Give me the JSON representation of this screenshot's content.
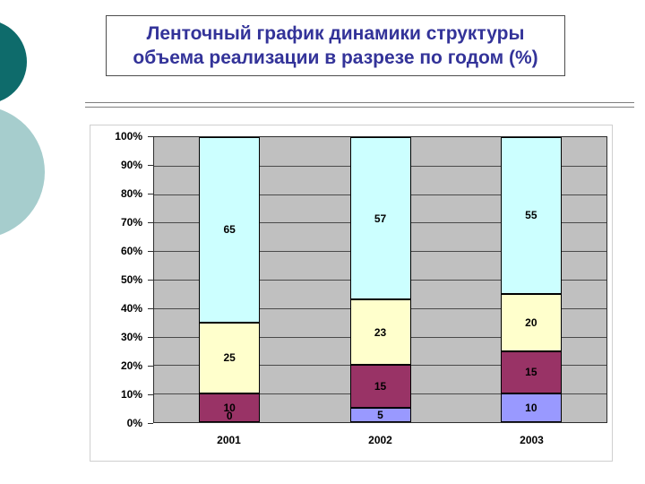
{
  "slide": {
    "title_line1": "Ленточный график динамики структуры",
    "title_line2": "объема реализации в разрезе по годом (%)"
  },
  "colors": {
    "title_text": "#333399",
    "decor_circle_dark": "#0E6B6B",
    "decor_circle_pale": "#A6CDCD"
  },
  "chart_data": {
    "type": "bar",
    "subtype": "100%-stacked-column",
    "title": "",
    "categories": [
      "2001",
      "2002",
      "2003"
    ],
    "series": [
      {
        "name": "series-1-periwinkle",
        "color": "#9999FF",
        "values": [
          0,
          5,
          10
        ]
      },
      {
        "name": "series-2-plum",
        "color": "#993366",
        "values": [
          10,
          15,
          15
        ]
      },
      {
        "name": "series-3-ivory",
        "color": "#FFFFCC",
        "values": [
          25,
          23,
          20
        ]
      },
      {
        "name": "series-4-light-cyan",
        "color": "#CCFFFF",
        "values": [
          65,
          57,
          55
        ]
      }
    ],
    "data_labels_shown": true,
    "y_ticks_top_to_bottom": [
      "100%",
      "90%",
      "80%",
      "70%",
      "60%",
      "50%",
      "40%",
      "30%",
      "20%",
      "10%",
      "0%"
    ],
    "ylim": [
      0,
      100
    ],
    "grid": true,
    "legend": "none",
    "plot_background": "#C0C0C0"
  }
}
